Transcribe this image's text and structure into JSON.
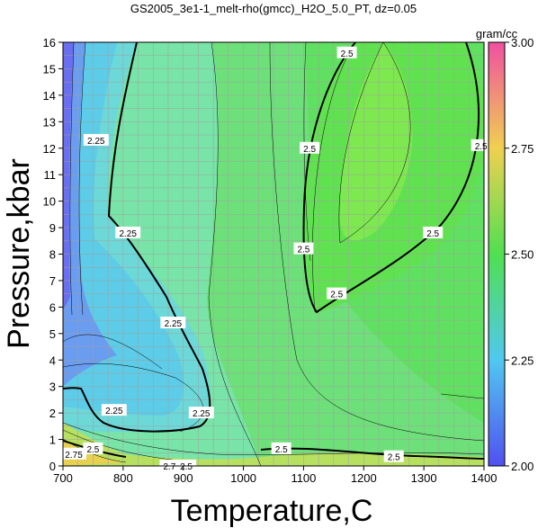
{
  "chart_data": {
    "type": "heatmap",
    "title": "GS2005_3e1-1_melt-rho(gmcc)_H2O_5.0_PT, dz=0.05",
    "xlabel": "Temperature,C",
    "ylabel": "Pressure,kbar",
    "xlim": [
      700,
      1400
    ],
    "ylim": [
      0,
      16
    ],
    "x_ticks": [
      "700",
      "800",
      "900",
      "1000",
      "1100",
      "1200",
      "1300",
      "1400"
    ],
    "y_ticks": [
      "0",
      "1",
      "2",
      "3",
      "4",
      "5",
      "6",
      "7",
      "8",
      "9",
      "10",
      "11",
      "12",
      "13",
      "14",
      "15",
      "16"
    ],
    "grid": true,
    "colorbar": {
      "label": "gram/cc",
      "range": [
        2.0,
        3.0
      ],
      "ticks": [
        "2.00",
        "2.25",
        "2.50",
        "2.75",
        "3.00"
      ],
      "colors": [
        "#5050f0",
        "#50c8f0",
        "#50e050",
        "#f0d050",
        "#f050a0"
      ]
    },
    "contour_interval": 0.05,
    "contour_labels": [
      {
        "text": "2.25",
        "t": 755,
        "p": 12.3
      },
      {
        "text": "2.25",
        "t": 808,
        "p": 8.8
      },
      {
        "text": "2.25",
        "t": 883,
        "p": 5.4
      },
      {
        "text": "2.25",
        "t": 930,
        "p": 2.0
      },
      {
        "text": "2.25",
        "t": 785,
        "p": 2.1
      },
      {
        "text": "2.5",
        "t": 1172,
        "p": 15.6
      },
      {
        "text": "2.5",
        "t": 1110,
        "p": 12.0
      },
      {
        "text": "2.5",
        "t": 1100,
        "p": 8.2
      },
      {
        "text": "2.5",
        "t": 1155,
        "p": 6.5
      },
      {
        "text": "2.5",
        "t": 1315,
        "p": 8.8
      },
      {
        "text": "2.5",
        "t": 1395,
        "p": 12.1
      },
      {
        "text": "2.5",
        "t": 1063,
        "p": 0.65
      },
      {
        "text": "2.5",
        "t": 1250,
        "p": 0.35
      },
      {
        "text": "2.5",
        "t": 750,
        "p": 0.65
      },
      {
        "text": "2.75",
        "t": 718,
        "p": 0.45
      },
      {
        "text": "2.7",
        "t": 877,
        "p": 0.0
      },
      {
        "text": "2.5",
        "t": 905,
        "p": 0.0
      }
    ]
  }
}
